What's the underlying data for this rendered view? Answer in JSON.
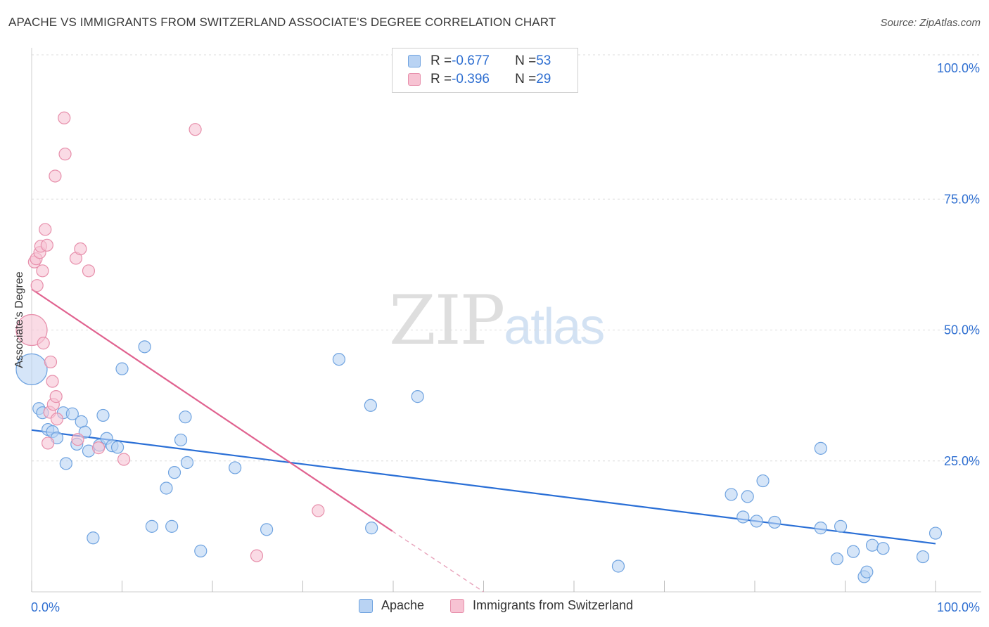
{
  "title": "APACHE VS IMMIGRANTS FROM SWITZERLAND ASSOCIATE'S DEGREE CORRELATION CHART",
  "source": "Source: ZipAtlas.com",
  "watermark": {
    "zip": "ZIP",
    "atlas": "atlas"
  },
  "colors": {
    "apache": "#6fa3e0",
    "apache_fill": "#b9d3f3",
    "swiss": "#e78fab",
    "swiss_fill": "#f7c3d3",
    "axis_text": "#2f6fd1"
  },
  "legend": {
    "rows": [
      {
        "r_label": "R = ",
        "r_value": "-0.677",
        "n_label": "N = ",
        "n_value": "53"
      },
      {
        "r_label": "R = ",
        "r_value": "-0.396",
        "n_label": "N = ",
        "n_value": "29"
      }
    ]
  },
  "bottom_legend": [
    "Apache",
    "Immigrants from Switzerland"
  ],
  "chart_data": {
    "type": "scatter",
    "title": "APACHE VS IMMIGRANTS FROM SWITZERLAND ASSOCIATE'S DEGREE CORRELATION CHART",
    "xlabel": "",
    "ylabel": "Associate's Degree",
    "xlim": [
      0,
      100
    ],
    "ylim": [
      0,
      100
    ],
    "x_tick_labels": [
      "0.0%",
      "100.0%"
    ],
    "y_tick_labels": [
      "25.0%",
      "50.0%",
      "75.0%",
      "100.0%"
    ],
    "y_ticks": [
      25,
      50,
      75,
      100
    ],
    "grid": true,
    "legend_position": "top-center",
    "series": [
      {
        "name": "Apache",
        "color": "#6fa3e0",
        "trend": {
          "x": [
            0,
            100
          ],
          "y": [
            30.9,
            9.2
          ]
        },
        "points": [
          {
            "x": 0.0,
            "y": 42.5,
            "big": true
          },
          {
            "x": 0.8,
            "y": 35.0
          },
          {
            "x": 1.2,
            "y": 34.2
          },
          {
            "x": 1.8,
            "y": 31.0
          },
          {
            "x": 2.3,
            "y": 30.6
          },
          {
            "x": 2.8,
            "y": 29.4
          },
          {
            "x": 3.5,
            "y": 34.2
          },
          {
            "x": 3.8,
            "y": 24.5
          },
          {
            "x": 4.5,
            "y": 34.0
          },
          {
            "x": 5.0,
            "y": 28.2
          },
          {
            "x": 5.5,
            "y": 32.5
          },
          {
            "x": 5.9,
            "y": 30.5
          },
          {
            "x": 6.3,
            "y": 26.9
          },
          {
            "x": 6.8,
            "y": 10.3
          },
          {
            "x": 7.5,
            "y": 28.0
          },
          {
            "x": 7.9,
            "y": 33.7
          },
          {
            "x": 8.3,
            "y": 29.3
          },
          {
            "x": 8.9,
            "y": 27.9
          },
          {
            "x": 9.5,
            "y": 27.6
          },
          {
            "x": 10.0,
            "y": 42.6
          },
          {
            "x": 12.5,
            "y": 46.8
          },
          {
            "x": 13.3,
            "y": 12.5
          },
          {
            "x": 14.9,
            "y": 19.8
          },
          {
            "x": 15.5,
            "y": 12.5
          },
          {
            "x": 15.8,
            "y": 22.8
          },
          {
            "x": 16.5,
            "y": 29.0
          },
          {
            "x": 17.0,
            "y": 33.4
          },
          {
            "x": 17.2,
            "y": 24.7
          },
          {
            "x": 18.7,
            "y": 7.8
          },
          {
            "x": 22.5,
            "y": 23.7
          },
          {
            "x": 26.0,
            "y": 11.9
          },
          {
            "x": 34.0,
            "y": 44.4
          },
          {
            "x": 37.5,
            "y": 35.6
          },
          {
            "x": 37.6,
            "y": 12.2
          },
          {
            "x": 42.7,
            "y": 37.3
          },
          {
            "x": 64.9,
            "y": 4.9
          },
          {
            "x": 77.4,
            "y": 18.6
          },
          {
            "x": 78.7,
            "y": 14.3
          },
          {
            "x": 79.2,
            "y": 18.2
          },
          {
            "x": 80.2,
            "y": 13.5
          },
          {
            "x": 80.9,
            "y": 21.2
          },
          {
            "x": 82.2,
            "y": 13.3
          },
          {
            "x": 87.3,
            "y": 27.4
          },
          {
            "x": 87.3,
            "y": 12.2
          },
          {
            "x": 89.1,
            "y": 6.3
          },
          {
            "x": 89.5,
            "y": 12.5
          },
          {
            "x": 90.9,
            "y": 7.7
          },
          {
            "x": 92.1,
            "y": 2.9
          },
          {
            "x": 92.4,
            "y": 3.8
          },
          {
            "x": 93.0,
            "y": 8.9
          },
          {
            "x": 94.2,
            "y": 8.3
          },
          {
            "x": 98.6,
            "y": 6.7
          },
          {
            "x": 100.0,
            "y": 11.2
          }
        ]
      },
      {
        "name": "Immigrants from Switzerland",
        "color": "#e78fab",
        "trend": {
          "x": [
            0,
            39.9
          ],
          "y": [
            57.8,
            11.6
          ]
        },
        "trend_dashed": {
          "x": [
            39.9,
            50
          ],
          "y": [
            11.6,
            0
          ]
        },
        "points": [
          {
            "x": 0.0,
            "y": 50.0,
            "big": true
          },
          {
            "x": 0.3,
            "y": 63.0
          },
          {
            "x": 0.5,
            "y": 63.6
          },
          {
            "x": 0.6,
            "y": 58.5
          },
          {
            "x": 0.9,
            "y": 64.8
          },
          {
            "x": 1.0,
            "y": 66.0
          },
          {
            "x": 1.2,
            "y": 61.3
          },
          {
            "x": 1.3,
            "y": 47.5
          },
          {
            "x": 1.5,
            "y": 69.2
          },
          {
            "x": 1.7,
            "y": 66.2
          },
          {
            "x": 1.8,
            "y": 28.4
          },
          {
            "x": 2.0,
            "y": 34.3
          },
          {
            "x": 2.1,
            "y": 43.9
          },
          {
            "x": 2.3,
            "y": 40.2
          },
          {
            "x": 2.4,
            "y": 35.8
          },
          {
            "x": 2.6,
            "y": 79.4
          },
          {
            "x": 2.7,
            "y": 37.3
          },
          {
            "x": 2.8,
            "y": 33.0
          },
          {
            "x": 3.6,
            "y": 90.5
          },
          {
            "x": 3.7,
            "y": 83.6
          },
          {
            "x": 4.9,
            "y": 63.7
          },
          {
            "x": 5.1,
            "y": 29.1
          },
          {
            "x": 5.4,
            "y": 65.5
          },
          {
            "x": 6.3,
            "y": 61.3
          },
          {
            "x": 7.4,
            "y": 27.5
          },
          {
            "x": 10.2,
            "y": 25.3
          },
          {
            "x": 18.1,
            "y": 88.3
          },
          {
            "x": 24.9,
            "y": 6.9
          },
          {
            "x": 31.7,
            "y": 15.5
          }
        ]
      }
    ]
  }
}
